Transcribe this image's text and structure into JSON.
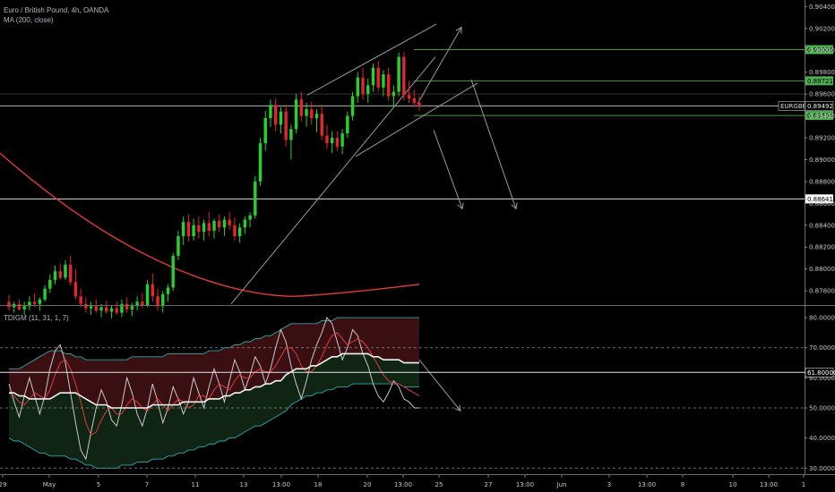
{
  "legend": {
    "symbol_line": "Euro / British Pound, 4h, OANDA",
    "ma_line": "MA (200, close)",
    "indicator_line": "TDIGM (11, 31, 1, 7)"
  },
  "colors": {
    "background": "#000000",
    "up_candle": "#26d12b",
    "down_candle": "#e3262a",
    "ma": "#e0393e",
    "level_green": "#3e9a3e",
    "drawing": "#9a9a9a",
    "bb_upper_fill": "#3a0f12",
    "bb_lower_fill": "#0f2412"
  },
  "chart_data": [
    {
      "type": "candlestick",
      "title": "Euro / British Pound, 4h, OANDA",
      "ylim": [
        0.8767,
        0.9046
      ],
      "price_ticks": [
        "0.90400",
        "0.90200",
        "0.90000",
        "0.89800",
        "0.89600",
        "0.89400",
        "0.89200",
        "0.89000",
        "0.88800",
        "0.88600",
        "0.88400",
        "0.88200",
        "0.88000",
        "0.87800"
      ],
      "time_ticks": [
        "29",
        "May",
        "5",
        "7",
        "11",
        "13",
        "13:00",
        "18",
        "20",
        "13:00",
        "25",
        "27",
        "13:00",
        "Jun",
        "3",
        "13:00",
        "8",
        "10",
        "13:00",
        "1"
      ],
      "current_price": {
        "label": "EURGBP",
        "value": "0.89492"
      },
      "levels": [
        {
          "value": "0.90006",
          "style": "green-box"
        },
        {
          "value": "0.89721",
          "style": "green-box"
        },
        {
          "value": "0.89404",
          "style": "green-box"
        },
        {
          "value": "0.88641",
          "style": "white-line"
        }
      ],
      "ma": {
        "name": "MA (200, close)",
        "period": 200
      },
      "candles": [
        {
          "o": 0.877,
          "h": 0.8776,
          "l": 0.8762,
          "c": 0.8765
        },
        {
          "o": 0.8765,
          "h": 0.877,
          "l": 0.876,
          "c": 0.8768
        },
        {
          "o": 0.8768,
          "h": 0.8772,
          "l": 0.8762,
          "c": 0.8763
        },
        {
          "o": 0.8763,
          "h": 0.877,
          "l": 0.8758,
          "c": 0.8766
        },
        {
          "o": 0.8766,
          "h": 0.8775,
          "l": 0.8762,
          "c": 0.877
        },
        {
          "o": 0.877,
          "h": 0.8778,
          "l": 0.8765,
          "c": 0.8768
        },
        {
          "o": 0.8768,
          "h": 0.8774,
          "l": 0.8762,
          "c": 0.8772
        },
        {
          "o": 0.8772,
          "h": 0.8785,
          "l": 0.877,
          "c": 0.8782
        },
        {
          "o": 0.8782,
          "h": 0.8795,
          "l": 0.8778,
          "c": 0.879
        },
        {
          "o": 0.879,
          "h": 0.8803,
          "l": 0.8786,
          "c": 0.8798
        },
        {
          "o": 0.8798,
          "h": 0.8805,
          "l": 0.879,
          "c": 0.8792
        },
        {
          "o": 0.8792,
          "h": 0.8808,
          "l": 0.879,
          "c": 0.8804
        },
        {
          "o": 0.8804,
          "h": 0.8812,
          "l": 0.8785,
          "c": 0.8788
        },
        {
          "o": 0.8788,
          "h": 0.88,
          "l": 0.8772,
          "c": 0.8775
        },
        {
          "o": 0.8775,
          "h": 0.8782,
          "l": 0.8765,
          "c": 0.8768
        },
        {
          "o": 0.8768,
          "h": 0.8774,
          "l": 0.876,
          "c": 0.8764
        },
        {
          "o": 0.8764,
          "h": 0.877,
          "l": 0.8758,
          "c": 0.8766
        },
        {
          "o": 0.8766,
          "h": 0.8772,
          "l": 0.876,
          "c": 0.8762
        },
        {
          "o": 0.8762,
          "h": 0.8768,
          "l": 0.8756,
          "c": 0.8765
        },
        {
          "o": 0.8765,
          "h": 0.8771,
          "l": 0.8759,
          "c": 0.8761
        },
        {
          "o": 0.8761,
          "h": 0.8767,
          "l": 0.8755,
          "c": 0.8764
        },
        {
          "o": 0.8764,
          "h": 0.877,
          "l": 0.8758,
          "c": 0.876
        },
        {
          "o": 0.876,
          "h": 0.8772,
          "l": 0.8756,
          "c": 0.8768
        },
        {
          "o": 0.8768,
          "h": 0.8774,
          "l": 0.876,
          "c": 0.8763
        },
        {
          "o": 0.8763,
          "h": 0.8769,
          "l": 0.8757,
          "c": 0.8766
        },
        {
          "o": 0.8766,
          "h": 0.8775,
          "l": 0.8762,
          "c": 0.877
        },
        {
          "o": 0.877,
          "h": 0.8778,
          "l": 0.8764,
          "c": 0.8767
        },
        {
          "o": 0.8767,
          "h": 0.879,
          "l": 0.8765,
          "c": 0.8786
        },
        {
          "o": 0.8786,
          "h": 0.8796,
          "l": 0.877,
          "c": 0.8775
        },
        {
          "o": 0.8775,
          "h": 0.8782,
          "l": 0.8762,
          "c": 0.8766
        },
        {
          "o": 0.8766,
          "h": 0.878,
          "l": 0.876,
          "c": 0.8777
        },
        {
          "o": 0.8777,
          "h": 0.8786,
          "l": 0.877,
          "c": 0.8783
        },
        {
          "o": 0.8783,
          "h": 0.8815,
          "l": 0.878,
          "c": 0.8812
        },
        {
          "o": 0.8812,
          "h": 0.8835,
          "l": 0.8808,
          "c": 0.883
        },
        {
          "o": 0.883,
          "h": 0.8848,
          "l": 0.8822,
          "c": 0.8843
        },
        {
          "o": 0.8843,
          "h": 0.885,
          "l": 0.8825,
          "c": 0.883
        },
        {
          "o": 0.883,
          "h": 0.8846,
          "l": 0.8826,
          "c": 0.884
        },
        {
          "o": 0.884,
          "h": 0.8848,
          "l": 0.8828,
          "c": 0.8834
        },
        {
          "o": 0.8834,
          "h": 0.8845,
          "l": 0.8826,
          "c": 0.8842
        },
        {
          "o": 0.8842,
          "h": 0.8852,
          "l": 0.883,
          "c": 0.8835
        },
        {
          "o": 0.8835,
          "h": 0.8846,
          "l": 0.8828,
          "c": 0.8844
        },
        {
          "o": 0.8844,
          "h": 0.885,
          "l": 0.8834,
          "c": 0.8838
        },
        {
          "o": 0.8838,
          "h": 0.8848,
          "l": 0.883,
          "c": 0.8845
        },
        {
          "o": 0.8845,
          "h": 0.8852,
          "l": 0.8836,
          "c": 0.884
        },
        {
          "o": 0.884,
          "h": 0.8847,
          "l": 0.8826,
          "c": 0.883
        },
        {
          "o": 0.883,
          "h": 0.8842,
          "l": 0.8824,
          "c": 0.8838
        },
        {
          "o": 0.8838,
          "h": 0.8848,
          "l": 0.8832,
          "c": 0.8845
        },
        {
          "o": 0.8845,
          "h": 0.8852,
          "l": 0.8838,
          "c": 0.8849
        },
        {
          "o": 0.8849,
          "h": 0.8885,
          "l": 0.8846,
          "c": 0.888
        },
        {
          "o": 0.888,
          "h": 0.892,
          "l": 0.8876,
          "c": 0.8915
        },
        {
          "o": 0.8915,
          "h": 0.8945,
          "l": 0.8908,
          "c": 0.8938
        },
        {
          "o": 0.8938,
          "h": 0.8955,
          "l": 0.893,
          "c": 0.895
        },
        {
          "o": 0.895,
          "h": 0.8956,
          "l": 0.8926,
          "c": 0.8932
        },
        {
          "o": 0.8932,
          "h": 0.8948,
          "l": 0.8924,
          "c": 0.8944
        },
        {
          "o": 0.8944,
          "h": 0.895,
          "l": 0.8912,
          "c": 0.8918
        },
        {
          "o": 0.8918,
          "h": 0.8932,
          "l": 0.89,
          "c": 0.8928
        },
        {
          "o": 0.8928,
          "h": 0.896,
          "l": 0.8924,
          "c": 0.8955
        },
        {
          "o": 0.8955,
          "h": 0.8962,
          "l": 0.8935,
          "c": 0.894
        },
        {
          "o": 0.894,
          "h": 0.8952,
          "l": 0.893,
          "c": 0.8946
        },
        {
          "o": 0.8946,
          "h": 0.8953,
          "l": 0.8932,
          "c": 0.8938
        },
        {
          "o": 0.8938,
          "h": 0.8946,
          "l": 0.8925,
          "c": 0.8942
        },
        {
          "o": 0.8942,
          "h": 0.895,
          "l": 0.8918,
          "c": 0.8922
        },
        {
          "o": 0.8922,
          "h": 0.8932,
          "l": 0.891,
          "c": 0.8915
        },
        {
          "o": 0.8915,
          "h": 0.8926,
          "l": 0.8906,
          "c": 0.892
        },
        {
          "o": 0.892,
          "h": 0.8926,
          "l": 0.8908,
          "c": 0.8912
        },
        {
          "o": 0.8912,
          "h": 0.8928,
          "l": 0.8905,
          "c": 0.8924
        },
        {
          "o": 0.8924,
          "h": 0.8944,
          "l": 0.892,
          "c": 0.894
        },
        {
          "o": 0.894,
          "h": 0.8962,
          "l": 0.8936,
          "c": 0.8958
        },
        {
          "o": 0.8958,
          "h": 0.898,
          "l": 0.8952,
          "c": 0.8975
        },
        {
          "o": 0.8975,
          "h": 0.8984,
          "l": 0.8955,
          "c": 0.896
        },
        {
          "o": 0.896,
          "h": 0.8974,
          "l": 0.8952,
          "c": 0.8968
        },
        {
          "o": 0.8968,
          "h": 0.8988,
          "l": 0.8962,
          "c": 0.8984
        },
        {
          "o": 0.8984,
          "h": 0.899,
          "l": 0.8962,
          "c": 0.8966
        },
        {
          "o": 0.8966,
          "h": 0.8982,
          "l": 0.8958,
          "c": 0.8978
        },
        {
          "o": 0.8978,
          "h": 0.8984,
          "l": 0.8954,
          "c": 0.8958
        },
        {
          "o": 0.8958,
          "h": 0.8968,
          "l": 0.8948,
          "c": 0.8962
        },
        {
          "o": 0.8962,
          "h": 0.8998,
          "l": 0.8958,
          "c": 0.8994
        },
        {
          "o": 0.8994,
          "h": 0.8998,
          "l": 0.8954,
          "c": 0.8959
        },
        {
          "o": 0.8959,
          "h": 0.8972,
          "l": 0.8952,
          "c": 0.8956
        },
        {
          "o": 0.8956,
          "h": 0.8964,
          "l": 0.8948,
          "c": 0.8952
        },
        {
          "o": 0.8952,
          "h": 0.8958,
          "l": 0.8945,
          "c": 0.8949
        }
      ]
    },
    {
      "type": "line",
      "title": "TDIGM (11, 31, 1, 7)",
      "ylim": [
        28,
        83
      ],
      "y_ticks": [
        "80.00000",
        "70.00000",
        "60.00000",
        "50.00000",
        "40.00000",
        "30.00000"
      ],
      "current_value": "61.80000",
      "guide_levels": [
        70,
        50,
        30
      ],
      "series": [
        {
          "role": "rsi",
          "color": "#c8c8c8",
          "values": [
            58,
            52,
            47,
            54,
            60,
            54,
            48,
            54,
            63,
            69,
            71,
            65,
            55,
            45,
            36,
            33,
            42,
            50,
            56,
            52,
            46,
            44,
            51,
            60,
            55,
            48,
            44,
            50,
            58,
            52,
            45,
            50,
            57,
            53,
            48,
            52,
            60,
            55,
            50,
            57,
            63,
            58,
            52,
            59,
            66,
            62,
            56,
            61,
            67,
            64,
            58,
            63,
            70,
            76,
            72,
            64,
            58,
            53,
            59,
            66,
            71,
            75,
            80,
            78,
            72,
            66,
            70,
            76,
            74,
            68,
            64,
            58,
            54,
            52,
            55,
            59,
            57,
            53,
            52,
            50,
            50
          ]
        },
        {
          "role": "signal",
          "color": "#e0393e",
          "values": [
            55,
            54,
            52,
            51,
            53,
            55,
            54,
            53,
            56,
            61,
            65,
            66,
            63,
            58,
            52,
            45,
            41,
            42,
            46,
            49,
            50,
            48,
            48,
            51,
            53,
            52,
            50,
            49,
            51,
            53,
            51,
            49,
            51,
            53,
            52,
            50,
            51,
            54,
            54,
            53,
            56,
            58,
            57,
            56,
            59,
            61,
            60,
            60,
            62,
            63,
            62,
            62,
            64,
            67,
            70,
            70,
            68,
            64,
            62,
            62,
            64,
            67,
            71,
            74,
            75,
            73,
            71,
            72,
            73,
            72,
            70,
            67,
            64,
            61,
            59,
            58,
            58,
            57,
            56,
            55,
            54
          ]
        },
        {
          "role": "mid",
          "color": "#f2f2f2",
          "values": [
            55,
            55,
            54,
            54,
            53,
            53,
            53,
            53,
            53,
            54,
            55,
            55,
            55,
            55,
            54,
            53,
            52,
            51,
            51,
            51,
            50,
            50,
            50,
            50,
            50,
            50,
            50,
            50,
            51,
            51,
            51,
            51,
            51,
            51,
            52,
            52,
            52,
            52,
            52,
            53,
            53,
            53,
            54,
            54,
            55,
            55,
            56,
            56,
            57,
            57,
            58,
            58,
            59,
            59,
            61,
            62,
            63,
            63,
            63,
            64,
            64,
            65,
            66,
            67,
            67,
            68,
            68,
            68,
            68,
            68,
            68,
            67,
            67,
            66,
            66,
            66,
            66,
            65,
            65,
            65,
            65
          ]
        }
      ],
      "band_upper": [
        63,
        63,
        63,
        64,
        65,
        66,
        67,
        68,
        69,
        69,
        69,
        68,
        68,
        67,
        67,
        66,
        66,
        66,
        66,
        66,
        66,
        66,
        66,
        66,
        67,
        67,
        67,
        67,
        67,
        67,
        67,
        68,
        68,
        68,
        68,
        68,
        68,
        68,
        68,
        69,
        69,
        69,
        70,
        70,
        71,
        71,
        72,
        72,
        73,
        73,
        74,
        74,
        75,
        76,
        77,
        78,
        78,
        78,
        78,
        78,
        78,
        79,
        79,
        79,
        80,
        80,
        80,
        80,
        80,
        80,
        80,
        80,
        80,
        80,
        80,
        80,
        80,
        80,
        80,
        80,
        80
      ],
      "band_lower": [
        40,
        39,
        39,
        38,
        37,
        36,
        35,
        35,
        34,
        34,
        34,
        34,
        33,
        33,
        32,
        31,
        31,
        30,
        30,
        30,
        30,
        30,
        31,
        31,
        31,
        32,
        32,
        32,
        33,
        33,
        33,
        34,
        34,
        35,
        35,
        36,
        36,
        37,
        37,
        38,
        38,
        39,
        39,
        40,
        40,
        41,
        42,
        43,
        44,
        44,
        45,
        46,
        47,
        48,
        49,
        51,
        52,
        53,
        54,
        54,
        55,
        55,
        56,
        56,
        57,
        57,
        57,
        58,
        58,
        58,
        58,
        58,
        58,
        58,
        58,
        58,
        58,
        57,
        57,
        57,
        57
      ]
    }
  ]
}
